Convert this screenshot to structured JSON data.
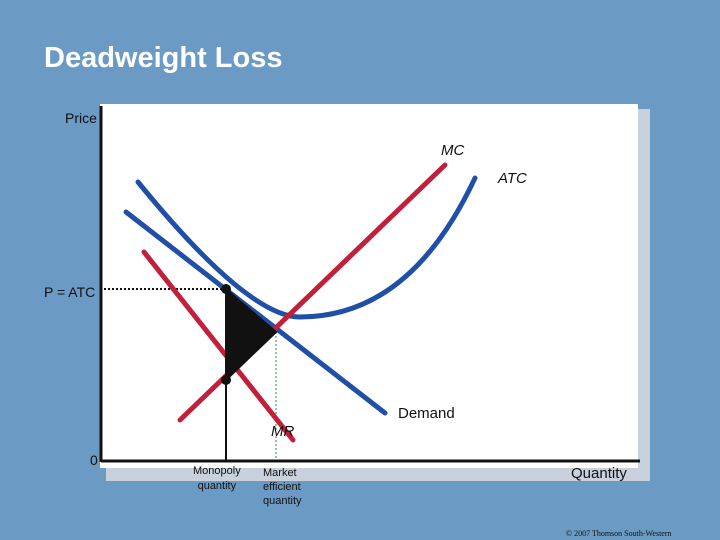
{
  "slide": {
    "title": "Deadweight Loss",
    "copyright": "© 2007 Thomson South-Western"
  },
  "axes": {
    "y_label": "Price",
    "x_label": "Quantity",
    "origin": "0"
  },
  "labels": {
    "p_atc": "P = ATC",
    "mc": "MC",
    "atc": "ATC",
    "mr": "MR",
    "demand": "Demand",
    "monopoly_quantity": [
      "Monopoly",
      "quantity"
    ],
    "efficient_quantity": [
      "Market",
      "efficient",
      "quantity"
    ]
  },
  "colors": {
    "background": "#6b9bc4",
    "curve_blue": "#1f4fa6",
    "curve_red": "#c21f3a",
    "deadweight": "#111111"
  }
}
